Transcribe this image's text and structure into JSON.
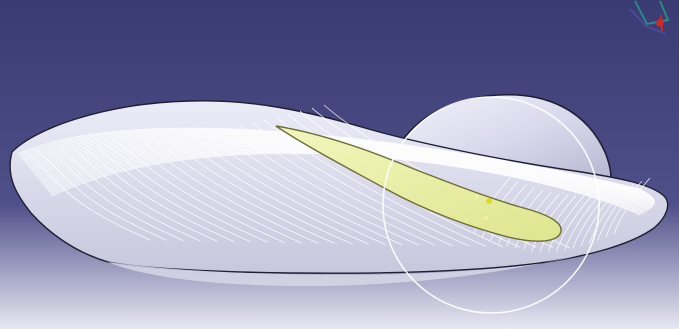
{
  "viewport": {
    "background_top": "#3a3a74",
    "background_bottom": "#e6e6f0",
    "horizon_fade": "#c8c8dd"
  },
  "model": {
    "surface_fill": "#e4e4f2",
    "surface_shade": "#b9b9cf",
    "edge_color": "#1f1f33",
    "wireframe_color": "#ffffff",
    "highlight_fill": "#e8ecb0",
    "highlight_edge": "#6d6d35",
    "circle_color": "#ffffff",
    "icon": "cad-loft-surface-icon"
  },
  "compass": {
    "icon": "view-compass-icon",
    "axis_colors": [
      "#2a8a86",
      "#cc2a2a",
      "#4a4a9a"
    ]
  }
}
